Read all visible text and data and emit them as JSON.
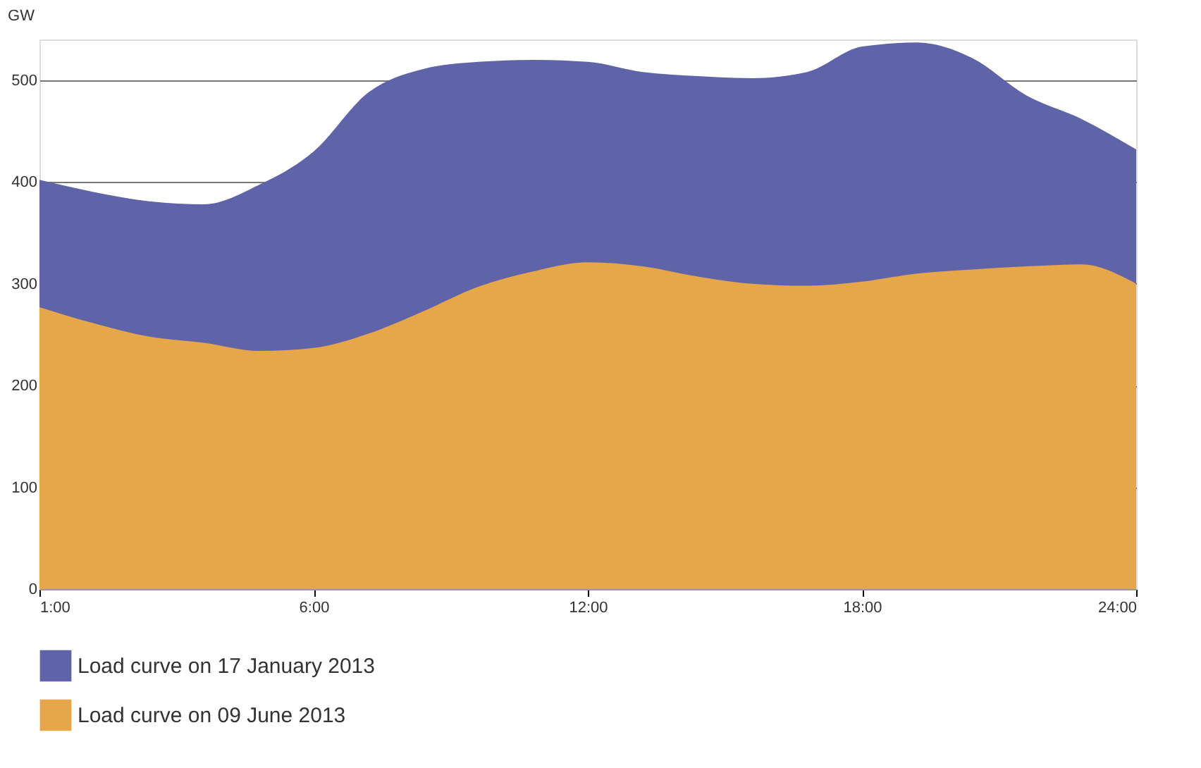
{
  "chart_data": {
    "type": "area",
    "ylabel": "GW",
    "categories": [
      "1:00",
      null,
      null,
      null,
      null,
      "6:00",
      null,
      null,
      null,
      null,
      "12:00",
      null,
      null,
      null,
      null,
      "18:00",
      null,
      null,
      null,
      null,
      "24:00"
    ],
    "ylim": [
      0,
      540
    ],
    "yticks": [
      0,
      100,
      200,
      300,
      400,
      500
    ],
    "grid": "y",
    "legend": "bottom left",
    "series": [
      {
        "name": "Load curve on 17 January 2013",
        "color": "#5f63a8",
        "values": [
          402,
          390,
          381,
          378,
          397,
          430,
          488,
          511,
          518,
          520,
          518,
          508,
          504,
          502,
          508,
          533,
          537,
          522,
          485,
          462,
          432
        ]
      },
      {
        "name": "Load curve on 09 June 2013",
        "color": "#e6a64a",
        "values": [
          277,
          261,
          248,
          242,
          234,
          237,
          251,
          273,
          297,
          312,
          321,
          317,
          307,
          300,
          298,
          302,
          310,
          314,
          317,
          319,
          300
        ]
      }
    ]
  }
}
